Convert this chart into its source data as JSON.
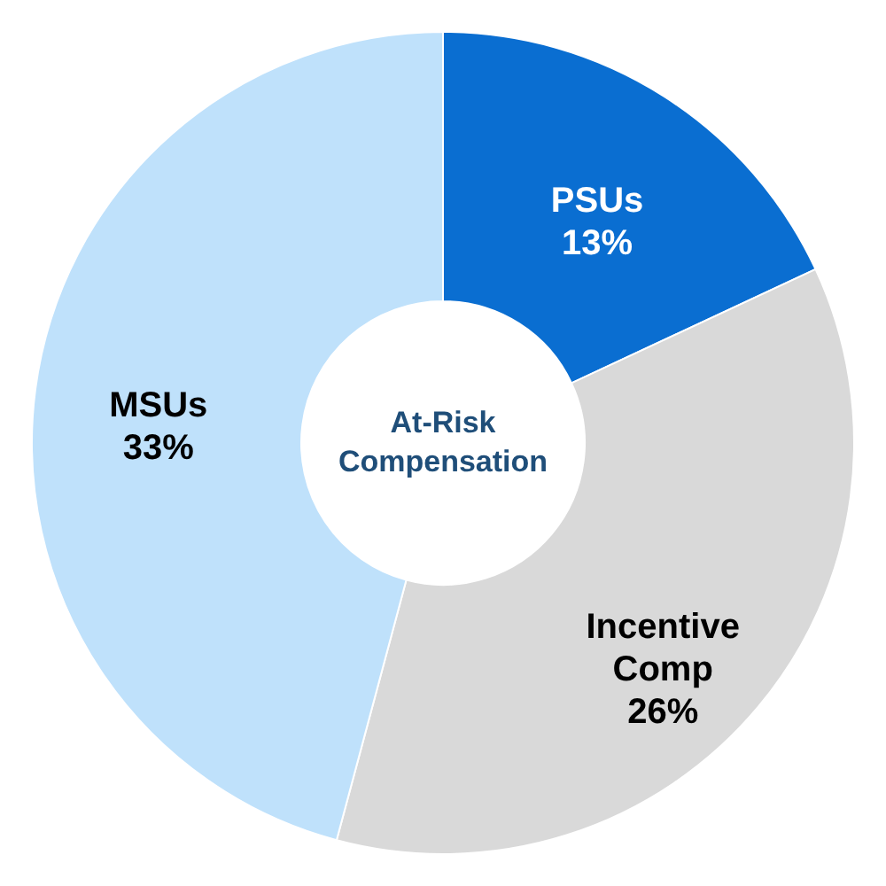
{
  "chart_data": {
    "type": "donut",
    "title": "At-Risk Compensation",
    "categories": [
      "PSUs",
      "Incentive Comp",
      "MSUs"
    ],
    "values": [
      13,
      26,
      33
    ],
    "value_labels": [
      "13%",
      "26%",
      "33%"
    ],
    "colors": [
      "#0a6ed1",
      "#d9d9d9",
      "#bfe1fb"
    ]
  }
}
